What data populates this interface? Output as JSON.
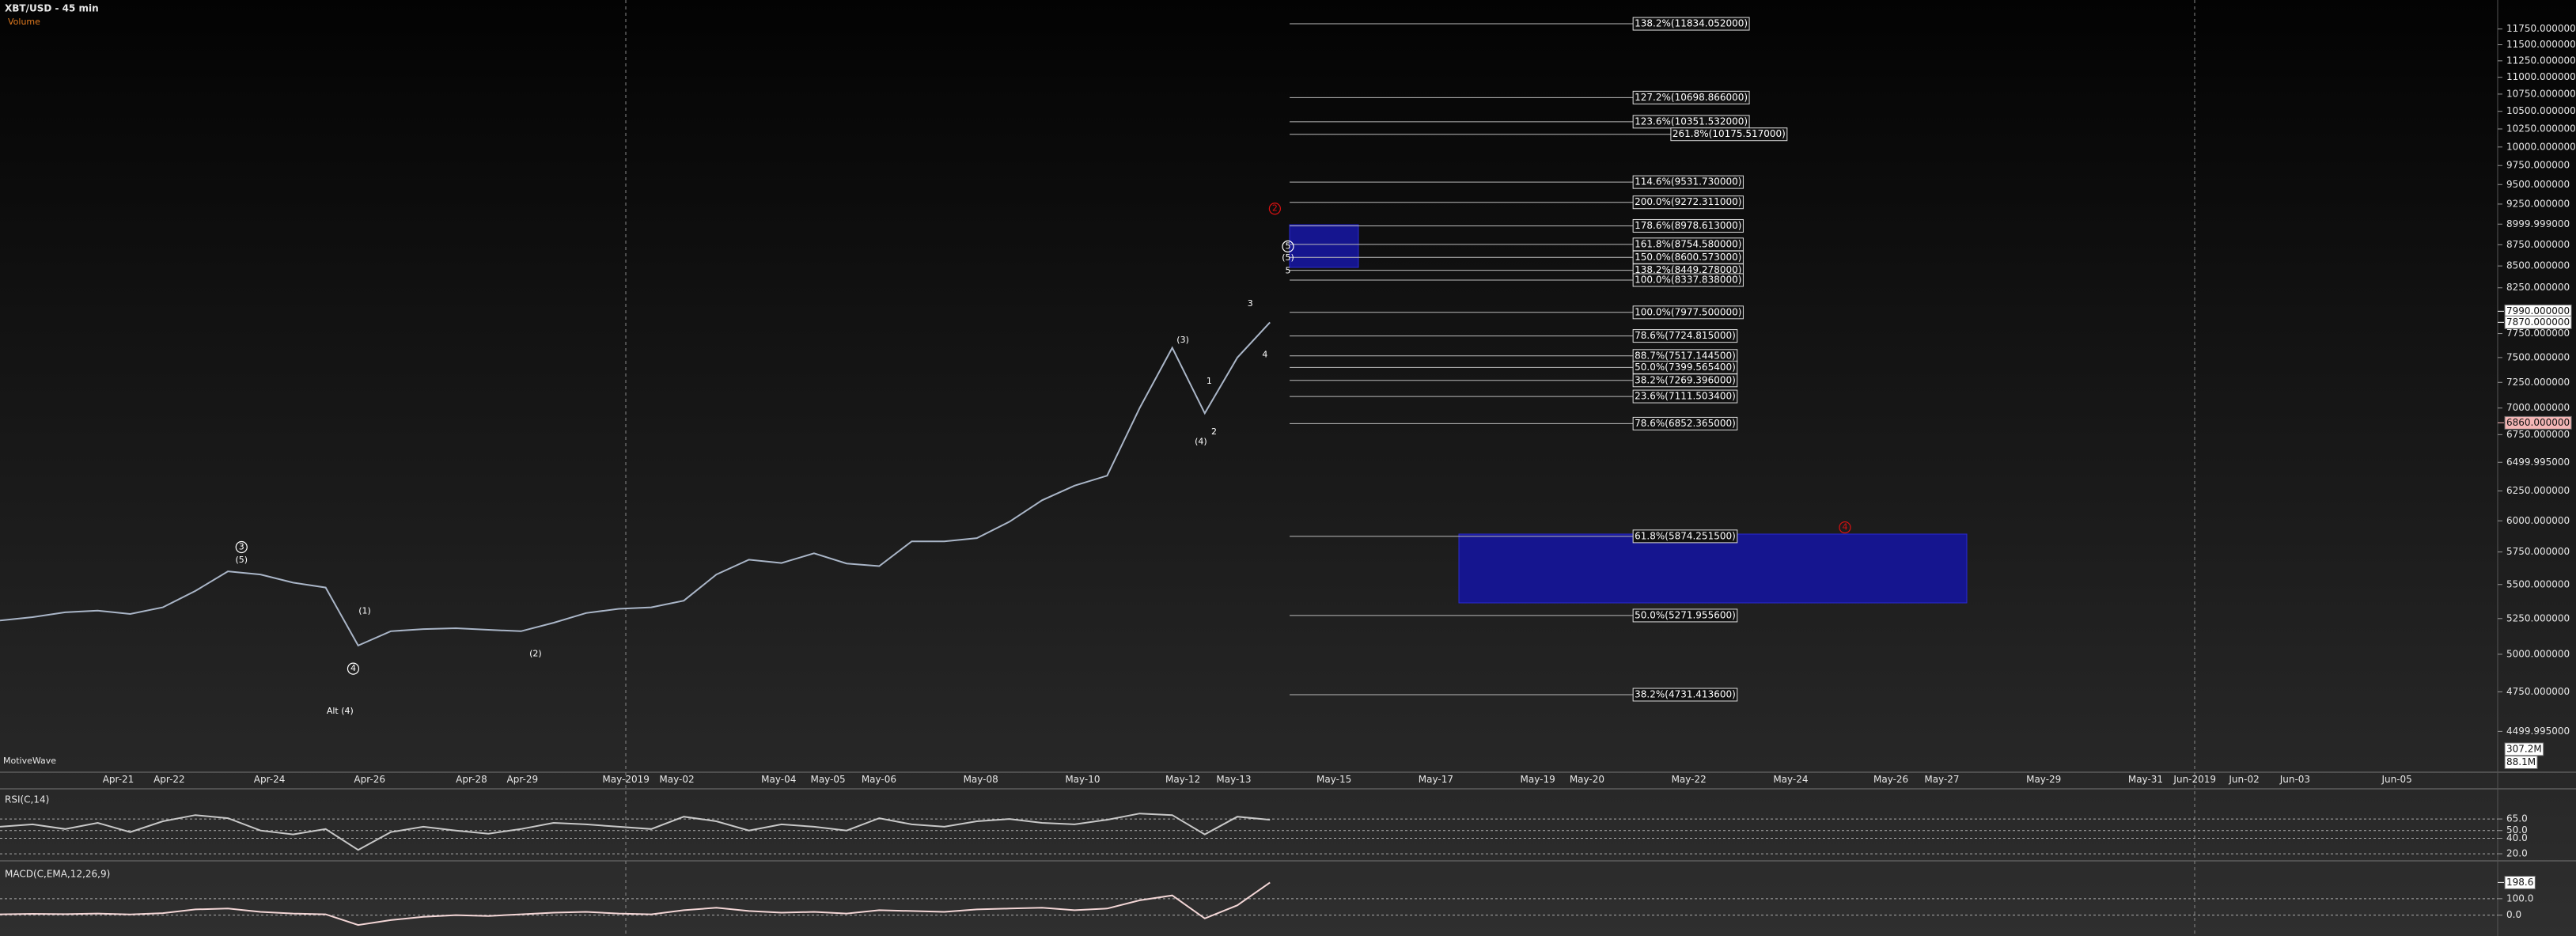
{
  "header": {
    "title": "XBT/USD - 45 min",
    "study": "Volume",
    "brand": "MotiveWave"
  },
  "chart_data": [
    {
      "type": "line",
      "color": "#aab6c8",
      "log_scale": true,
      "ylim": [
        4275,
        12225
      ],
      "values": [
        5236,
        5260,
        5295,
        5307,
        5283,
        5331,
        5452,
        5600,
        5576,
        5514,
        5477,
        5060,
        5160,
        5175,
        5181,
        5170,
        5160,
        5220,
        5290,
        5320,
        5331,
        5380,
        5576,
        5690,
        5664,
        5740,
        5660,
        5640,
        5834,
        5834,
        5860,
        5993,
        6171,
        6296,
        6382,
        7000,
        7600,
        6950,
        7500,
        7870
      ],
      "yticks": [
        {
          "value": 11750,
          "label": "11750.000000"
        },
        {
          "value": 11500,
          "label": "11500.000000"
        },
        {
          "value": 11250,
          "label": "11250.000000"
        },
        {
          "value": 11000,
          "label": "11000.000000"
        },
        {
          "value": 10750,
          "label": "10750.000000"
        },
        {
          "value": 10500,
          "label": "10500.000000"
        },
        {
          "value": 10250,
          "label": "10250.000000"
        },
        {
          "value": 10000,
          "label": "10000.000000"
        },
        {
          "value": 9750,
          "label": "9750.000000"
        },
        {
          "value": 9500,
          "label": "9500.000000"
        },
        {
          "value": 9250,
          "label": "9250.000000"
        },
        {
          "value": 8999.999,
          "label": "8999.999000"
        },
        {
          "value": 8750,
          "label": "8750.000000"
        },
        {
          "value": 8500,
          "label": "8500.000000"
        },
        {
          "value": 8250,
          "label": "8250.000000"
        },
        {
          "value": 7750,
          "label": "7750.000000"
        },
        {
          "value": 7500,
          "label": "7500.000000"
        },
        {
          "value": 7250,
          "label": "7250.000000"
        },
        {
          "value": 7000,
          "label": "7000.000000"
        },
        {
          "value": 6750,
          "label": "6750.000000"
        },
        {
          "value": 6499.995,
          "label": "6499.995000"
        },
        {
          "value": 6250,
          "label": "6250.000000"
        },
        {
          "value": 6000,
          "label": "6000.000000"
        },
        {
          "value": 5750,
          "label": "5750.000000"
        },
        {
          "value": 5500,
          "label": "5500.000000"
        },
        {
          "value": 5250,
          "label": "5250.000000"
        },
        {
          "value": 5000,
          "label": "5000.000000"
        },
        {
          "value": 4750,
          "label": "4750.000000"
        },
        {
          "value": 4499.995,
          "label": "4499.995000"
        }
      ],
      "date_labels": [
        "Apr-21",
        "Apr-22",
        "Apr-24",
        "Apr-26",
        "Apr-28",
        "Apr-29",
        "May-2019",
        "May-02",
        "May-04",
        "May-05",
        "May-06",
        "May-08",
        "May-10",
        "May-12",
        "May-13",
        "May-15",
        "May-17",
        "May-19",
        "May-20",
        "May-22",
        "May-24",
        "May-26",
        "May-27",
        "May-29",
        "May-31",
        "Jun-2019",
        "Jun-02",
        "Jun-03",
        "Jun-05"
      ],
      "levels": [
        {
          "value": 11834.052,
          "label": "138.2%(11834.052000)"
        },
        {
          "value": 10698.866,
          "label": "127.2%(10698.866000)"
        },
        {
          "value": 10351.532,
          "label": "123.6%(10351.532000)"
        },
        {
          "value": 10175.517,
          "label": "261.8%(10175.517000)"
        },
        {
          "value": 9531.73,
          "label": "114.6%(9531.730000)"
        },
        {
          "value": 9272.311,
          "label": "200.0%(9272.311000)"
        },
        {
          "value": 8978.613,
          "label": "178.6%(8978.613000)"
        },
        {
          "value": 8754.58,
          "label": "161.8%(8754.580000)"
        },
        {
          "value": 8600.573,
          "label": "150.0%(8600.573000)"
        },
        {
          "value": 8449.278,
          "label": "138.2%(8449.278000)"
        },
        {
          "value": 8337.838,
          "label": "100.0%(8337.838000)"
        },
        {
          "value": 7977.5,
          "label": "100.0%(7977.500000)"
        },
        {
          "value": 7724.815,
          "label": "78.6%(7724.815000)"
        },
        {
          "value": 7517.1445,
          "label": "88.7%(7517.144500)"
        },
        {
          "value": 7399.5654,
          "label": "50.0%(7399.565400)"
        },
        {
          "value": 7269.396,
          "label": "38.2%(7269.396000)"
        },
        {
          "value": 7111.5034,
          "label": "23.6%(7111.503400)"
        },
        {
          "value": 6852.365,
          "label": "78.6%(6852.365000)"
        },
        {
          "value": 5874.2515,
          "label": "61.8%(5874.251500)"
        },
        {
          "value": 5271.9556,
          "label": "50.0%(5271.955600)"
        },
        {
          "value": 4731.4136,
          "label": "38.2%(4731.413600)"
        }
      ],
      "price_markers": [
        {
          "value": 7990,
          "label": "7990.000000",
          "color": "#ffffff"
        },
        {
          "value": 7870,
          "label": "7870.000000",
          "color": "#ffffff"
        },
        {
          "value": 6860,
          "label": "6860.000000",
          "color": "#f4b6b6"
        }
      ],
      "volume_labels": [
        "307.2M",
        "88.1M"
      ],
      "wave_labels": [
        {
          "text": "3",
          "circled": true,
          "color": "#ffffff"
        },
        {
          "text": "(5)",
          "circled": false,
          "color": "#ffffff"
        },
        {
          "text": "(1)",
          "circled": false,
          "color": "#ffffff"
        },
        {
          "text": "4",
          "circled": true,
          "color": "#ffffff"
        },
        {
          "text": "(2)",
          "circled": false,
          "color": "#ffffff"
        },
        {
          "text": "Alt (4)",
          "circled": false,
          "color": "#ffffff"
        },
        {
          "text": "(3)",
          "circled": false,
          "color": "#ffffff"
        },
        {
          "text": "1",
          "circled": false,
          "color": "#ffffff"
        },
        {
          "text": "2",
          "circled": false,
          "color": "#ffffff"
        },
        {
          "text": "(4)",
          "circled": false,
          "color": "#ffffff"
        },
        {
          "text": "3",
          "circled": false,
          "color": "#ffffff"
        },
        {
          "text": "4",
          "circled": false,
          "color": "#ffffff"
        },
        {
          "text": "5",
          "circled": true,
          "color": "#ffffff"
        },
        {
          "text": "(5)",
          "circled": false,
          "color": "#ffffff"
        },
        {
          "text": "5",
          "circled": false,
          "color": "#ffffff"
        },
        {
          "text": "2",
          "circled": true,
          "color": "#dd1111"
        },
        {
          "text": "4",
          "circled": true,
          "color": "#dd1111"
        }
      ]
    },
    {
      "type": "line",
      "title": "RSI(C,14)",
      "color": "#c8c8c8",
      "ylim": [
        15,
        100
      ],
      "yticks": [
        {
          "value": 65,
          "label": "65.0"
        },
        {
          "value": 50,
          "label": "50.0"
        },
        {
          "value": 40,
          "label": "40.0"
        },
        {
          "value": 20,
          "label": "20.0"
        }
      ],
      "values": [
        55,
        58,
        52,
        60,
        48,
        62,
        70,
        66,
        50,
        45,
        52,
        25,
        48,
        55,
        50,
        46,
        52,
        60,
        58,
        55,
        52,
        68,
        62,
        50,
        58,
        55,
        50,
        66,
        58,
        55,
        62,
        65,
        60,
        58,
        64,
        72,
        70,
        45,
        68,
        64
      ]
    },
    {
      "type": "line",
      "title": "MACD(C,EMA,12,26,9)",
      "color": "#f3d6d6",
      "ylim": [
        -130,
        310
      ],
      "yticks": [
        {
          "value": 100,
          "label": "100.0"
        },
        {
          "value": 0,
          "label": "0.0"
        }
      ],
      "price_markers": [
        {
          "value": 198.6,
          "label": "198.6",
          "color": "#ffffff"
        }
      ],
      "values": [
        5,
        8,
        6,
        10,
        4,
        12,
        35,
        40,
        20,
        10,
        5,
        -60,
        -30,
        -10,
        0,
        -5,
        5,
        15,
        20,
        10,
        5,
        30,
        45,
        25,
        15,
        20,
        10,
        30,
        25,
        20,
        35,
        40,
        45,
        30,
        40,
        90,
        120,
        -20,
        60,
        198.6
      ]
    }
  ]
}
